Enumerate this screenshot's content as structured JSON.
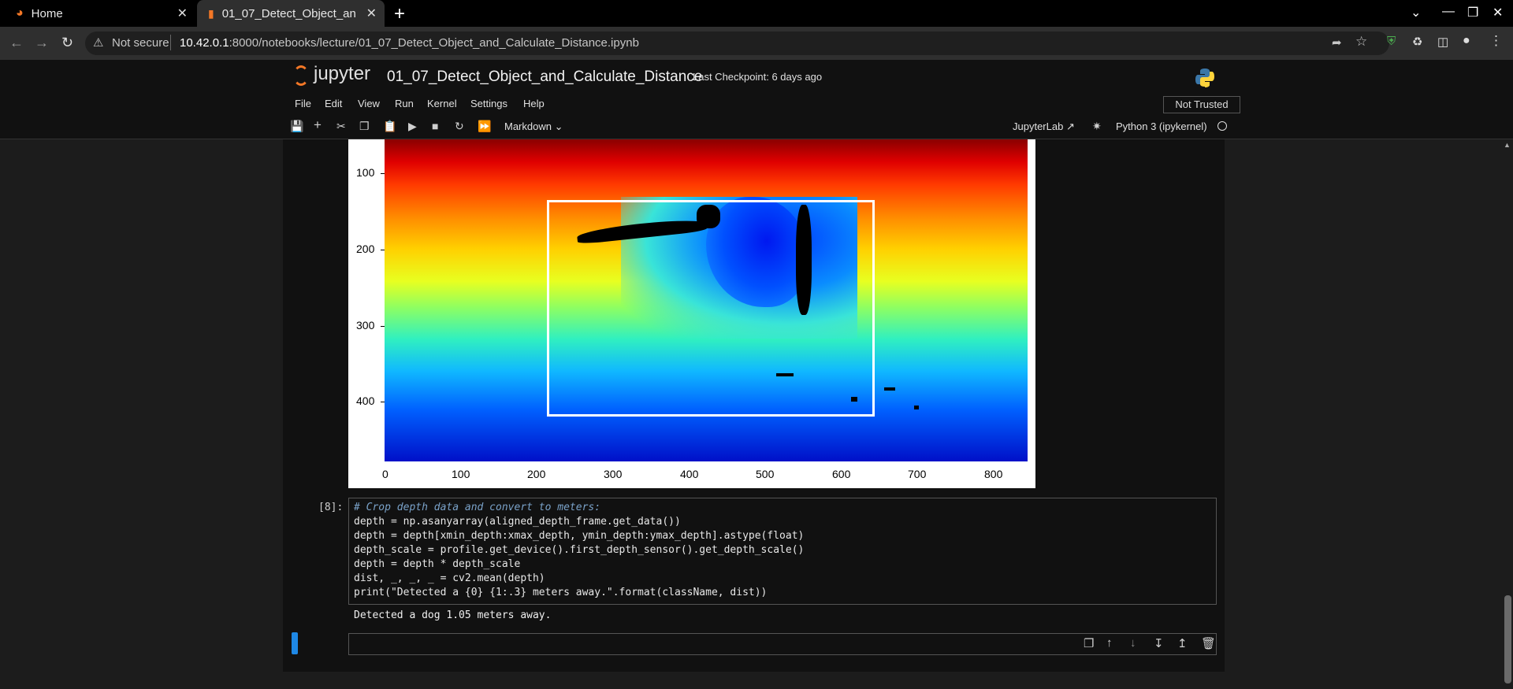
{
  "browser": {
    "tabs": [
      {
        "label": "Home",
        "icon": "jupyter-icon"
      },
      {
        "label": "01_07_Detect_Object_and_Calculate_Distance",
        "icon": "notebook-icon"
      }
    ],
    "security_text": "Not secure",
    "url_host": "10.42.0.1",
    "url_rest": ":8000/notebooks/lecture/01_07_Detect_Object_and_Calculate_Distance.ipynb"
  },
  "jupyter": {
    "logo_text": "jupyter",
    "notebook_title": "01_07_Detect_Object_and_Calculate_Distance",
    "checkpoint": "Last Checkpoint: 6 days ago",
    "menu": [
      "File",
      "Edit",
      "View",
      "Run",
      "Kernel",
      "Settings",
      "Help"
    ],
    "trust_status": "Not Trusted",
    "cell_type": "Markdown",
    "jupyterlab_link": "JupyterLab",
    "kernel_name": "Python 3 (ipykernel)"
  },
  "plot": {
    "yticks": [
      "100",
      "200",
      "300",
      "400"
    ],
    "xticks": [
      "0",
      "100",
      "200",
      "300",
      "400",
      "500",
      "600",
      "700",
      "800"
    ]
  },
  "code_cell": {
    "prompt": "[8]:",
    "lines": [
      "# Crop depth data and convert to meters:",
      "depth = np.asanyarray(aligned_depth_frame.get_data())",
      "depth = depth[xmin_depth:xmax_depth, ymin_depth:ymax_depth].astype(float)",
      "depth_scale = profile.get_device().first_depth_sensor().get_depth_scale()",
      "depth = depth * depth_scale",
      "dist, _, _, _ = cv2.mean(depth)",
      "print(\"Detected a {0} {1:.3} meters away.\".format(className, dist))"
    ],
    "output": "Detected a dog 1.05 meters away."
  },
  "colors": {
    "accent": "#1e88e5",
    "jupyter_orange": "#f37726"
  }
}
